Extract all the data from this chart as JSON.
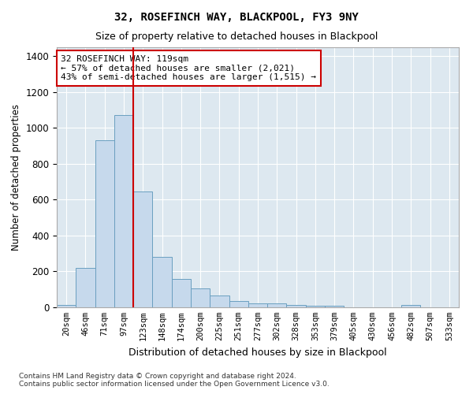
{
  "title": "32, ROSEFINCH WAY, BLACKPOOL, FY3 9NY",
  "subtitle": "Size of property relative to detached houses in Blackpool",
  "xlabel": "Distribution of detached houses by size in Blackpool",
  "ylabel": "Number of detached properties",
  "footer_line1": "Contains HM Land Registry data © Crown copyright and database right 2024.",
  "footer_line2": "Contains public sector information licensed under the Open Government Licence v3.0.",
  "categories": [
    "20sqm",
    "46sqm",
    "71sqm",
    "97sqm",
    "123sqm",
    "148sqm",
    "174sqm",
    "200sqm",
    "225sqm",
    "251sqm",
    "277sqm",
    "302sqm",
    "328sqm",
    "353sqm",
    "379sqm",
    "405sqm",
    "430sqm",
    "456sqm",
    "482sqm",
    "507sqm",
    "533sqm"
  ],
  "values": [
    12,
    220,
    930,
    1070,
    645,
    280,
    158,
    105,
    65,
    35,
    20,
    20,
    12,
    10,
    8,
    0,
    0,
    0,
    12,
    0,
    0
  ],
  "bar_color": "#c6d9ec",
  "bar_edge_color": "#6a9fc0",
  "vline_color": "#cc0000",
  "annotation_text": "32 ROSEFINCH WAY: 119sqm\n← 57% of detached houses are smaller (2,021)\n43% of semi-detached houses are larger (1,515) →",
  "annotation_border_color": "#cc0000",
  "ylim": [
    0,
    1450
  ],
  "yticks": [
    0,
    200,
    400,
    600,
    800,
    1000,
    1200,
    1400
  ],
  "fig_bg_color": "#ffffff",
  "plot_bg_color": "#dde8f0",
  "grid_color": "#ffffff"
}
